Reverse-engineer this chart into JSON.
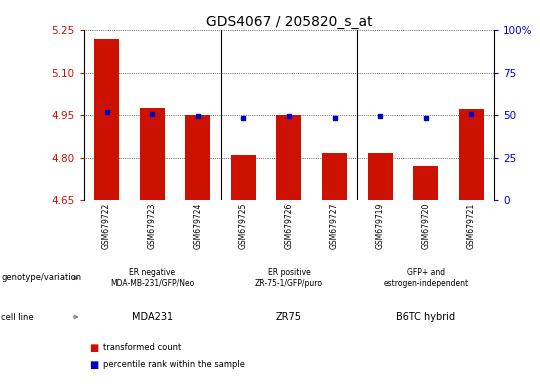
{
  "title": "GDS4067 / 205820_s_at",
  "samples": [
    "GSM679722",
    "GSM679723",
    "GSM679724",
    "GSM679725",
    "GSM679726",
    "GSM679727",
    "GSM679719",
    "GSM679720",
    "GSM679721"
  ],
  "red_values": [
    5.22,
    4.975,
    4.95,
    4.81,
    4.95,
    4.815,
    4.815,
    4.77,
    4.97
  ],
  "blue_values": [
    4.962,
    4.952,
    4.947,
    4.94,
    4.947,
    4.94,
    4.945,
    4.94,
    4.952
  ],
  "ylim": [
    4.65,
    5.25
  ],
  "yticks_left": [
    4.65,
    4.8,
    4.95,
    5.1,
    5.25
  ],
  "yticks_right_vals": [
    0,
    25,
    50,
    75,
    100
  ],
  "yticks_right_pos": [
    4.65,
    4.8,
    4.95,
    5.1,
    5.25
  ],
  "bar_color": "#CC1100",
  "dot_color": "#0000CC",
  "bar_width": 0.55,
  "baseline": 4.65,
  "groups": [
    {
      "label": "ER negative\nMDA-MB-231/GFP/Neo",
      "cell_line": "MDA231",
      "start": 0,
      "end": 3,
      "color_geno": "#ccffcc",
      "color_cell": "#ee88ee"
    },
    {
      "label": "ER positive\nZR-75-1/GFP/puro",
      "cell_line": "ZR75",
      "start": 3,
      "end": 6,
      "color_geno": "#88ee88",
      "color_cell": "#ee88ee"
    },
    {
      "label": "GFP+ and\nestrogen-independent",
      "cell_line": "B6TC hybrid",
      "start": 6,
      "end": 9,
      "color_geno": "#55dd55",
      "color_cell": "#ee88ee"
    }
  ],
  "xtick_bg": "#cccccc",
  "ylabel_left_color": "#CC1100",
  "ylabel_right_color": "#0000CC",
  "title_fontsize": 10,
  "tick_fontsize": 7.5,
  "label_fontsize": 7
}
